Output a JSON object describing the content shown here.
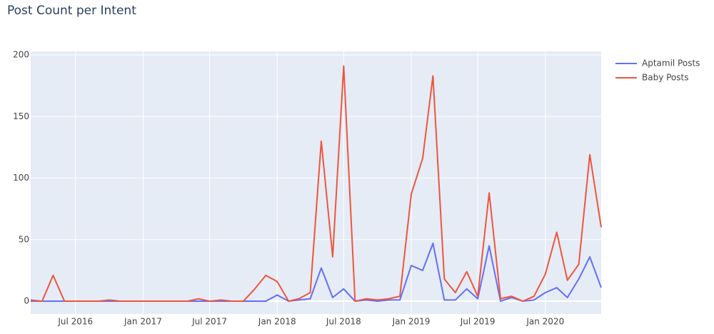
{
  "chart_data": {
    "type": "line",
    "title": "Post Count per Intent",
    "x": [
      "2016-03",
      "2016-04",
      "2016-05",
      "2016-06",
      "2016-07",
      "2016-08",
      "2016-09",
      "2016-10",
      "2016-11",
      "2016-12",
      "2017-01",
      "2017-02",
      "2017-03",
      "2017-04",
      "2017-05",
      "2017-06",
      "2017-07",
      "2017-08",
      "2017-09",
      "2017-10",
      "2017-11",
      "2017-12",
      "2018-01",
      "2018-02",
      "2018-03",
      "2018-04",
      "2018-05",
      "2018-06",
      "2018-07",
      "2018-08",
      "2018-09",
      "2018-10",
      "2018-11",
      "2018-12",
      "2019-01",
      "2019-02",
      "2019-03",
      "2019-04",
      "2019-05",
      "2019-06",
      "2019-07",
      "2019-08",
      "2019-09",
      "2019-10",
      "2019-11",
      "2019-12",
      "2020-01",
      "2020-02",
      "2020-03",
      "2020-04",
      "2020-05",
      "2020-06"
    ],
    "series": [
      {
        "name": "Aptamil Posts",
        "color": "#636efa",
        "values": [
          0,
          0,
          0,
          0,
          0,
          0,
          0,
          0,
          0,
          0,
          0,
          0,
          0,
          0,
          0,
          0,
          0,
          0,
          0,
          0,
          0,
          0,
          5,
          0,
          1,
          2,
          27,
          3,
          10,
          0,
          1,
          0,
          1,
          1,
          29,
          25,
          47,
          1,
          1,
          10,
          2,
          45,
          0,
          3,
          0,
          1,
          7,
          11,
          3,
          18,
          36,
          11
        ]
      },
      {
        "name": "Baby Posts",
        "color": "#ef553b",
        "values": [
          1,
          0,
          21,
          0,
          0,
          0,
          0,
          1,
          0,
          0,
          0,
          0,
          0,
          0,
          0,
          2,
          0,
          1,
          0,
          0,
          10,
          21,
          16,
          0,
          2,
          7,
          130,
          36,
          191,
          0,
          2,
          1,
          2,
          4,
          87,
          116,
          183,
          18,
          7,
          24,
          4,
          88,
          2,
          4,
          0,
          4,
          22,
          56,
          17,
          30,
          119,
          60
        ]
      }
    ],
    "xlim": [
      "2016-03",
      "2020-06"
    ],
    "xticks": [
      {
        "value": "2016-07",
        "label": "Jul 2016"
      },
      {
        "value": "2017-01",
        "label": "Jan 2017"
      },
      {
        "value": "2017-07",
        "label": "Jul 2017"
      },
      {
        "value": "2018-01",
        "label": "Jan 2018"
      },
      {
        "value": "2018-07",
        "label": "Jul 2018"
      },
      {
        "value": "2019-01",
        "label": "Jan 2019"
      },
      {
        "value": "2019-07",
        "label": "Jul 2019"
      },
      {
        "value": "2020-01",
        "label": "Jan 2020"
      }
    ],
    "ylim": [
      -10.4,
      202.9
    ],
    "yticks": [
      0,
      50,
      100,
      150,
      200
    ],
    "grid": true,
    "legend": "right"
  }
}
